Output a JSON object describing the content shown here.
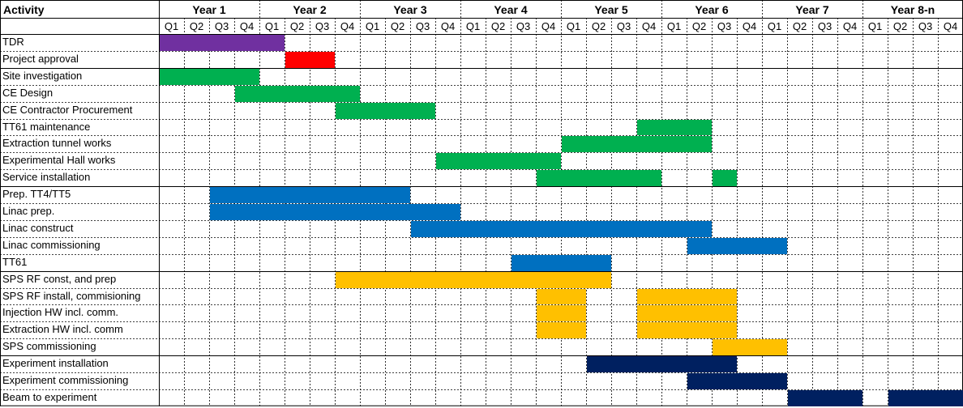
{
  "chart_data": {
    "type": "gantt",
    "activity_header": "Activity",
    "years": [
      "Year 1",
      "Year 2",
      "Year 3",
      "Year 4",
      "Year 5",
      "Year 6",
      "Year 7",
      "Year 8-n"
    ],
    "quarters": [
      "Q1",
      "Q2",
      "Q3",
      "Q4"
    ],
    "colors": {
      "purple": "#7030a0",
      "red": "#ff0000",
      "green": "#00b050",
      "blue": "#0070c0",
      "yellow": "#ffc000",
      "navy": "#002060"
    },
    "rows": [
      {
        "activity": "TDR",
        "color": "purple",
        "segments": [
          [
            0,
            5
          ]
        ]
      },
      {
        "activity": "Project approval",
        "color": "red",
        "segments": [
          [
            5,
            7
          ]
        ]
      },
      {
        "activity": "Site investigation",
        "color": "green",
        "segments": [
          [
            0,
            4
          ]
        ]
      },
      {
        "activity": "CE Design",
        "color": "green",
        "segments": [
          [
            3,
            8
          ]
        ]
      },
      {
        "activity": "CE Contractor Procurement",
        "color": "green",
        "segments": [
          [
            7,
            11
          ]
        ]
      },
      {
        "activity": "TT61 maintenance",
        "color": "green",
        "segments": [
          [
            19,
            22
          ]
        ]
      },
      {
        "activity": "Extraction tunnel works",
        "color": "green",
        "segments": [
          [
            16,
            22
          ]
        ]
      },
      {
        "activity": "Experimental Hall works",
        "color": "green",
        "segments": [
          [
            11,
            16
          ]
        ]
      },
      {
        "activity": "Service installation",
        "color": "green",
        "segments": [
          [
            15,
            20
          ],
          [
            22,
            23
          ]
        ]
      },
      {
        "activity": "Prep. TT4/TT5",
        "color": "blue",
        "segments": [
          [
            2,
            10
          ]
        ]
      },
      {
        "activity": "Linac prep.",
        "color": "blue",
        "segments": [
          [
            2,
            12
          ]
        ]
      },
      {
        "activity": "Linac construct",
        "color": "blue",
        "segments": [
          [
            10,
            22
          ]
        ]
      },
      {
        "activity": "Linac commissioning",
        "color": "blue",
        "segments": [
          [
            21,
            25
          ]
        ]
      },
      {
        "activity": "TT61",
        "color": "blue",
        "segments": [
          [
            14,
            18
          ]
        ]
      },
      {
        "activity": "SPS RF const, and prep",
        "color": "yellow",
        "segments": [
          [
            7,
            18
          ]
        ]
      },
      {
        "activity": "SPS RF install, commisioning",
        "color": "yellow",
        "segments": [
          [
            15,
            17
          ],
          [
            19,
            23
          ]
        ]
      },
      {
        "activity": "Injection HW incl. comm.",
        "color": "yellow",
        "segments": [
          [
            15,
            17
          ],
          [
            19,
            23
          ]
        ]
      },
      {
        "activity": "Extraction HW incl. comm",
        "color": "yellow",
        "segments": [
          [
            15,
            17
          ],
          [
            19,
            23
          ]
        ]
      },
      {
        "activity": "SPS commissioning",
        "color": "yellow",
        "segments": [
          [
            22,
            25
          ]
        ]
      },
      {
        "activity": "Experiment installation",
        "color": "navy",
        "segments": [
          [
            17,
            23
          ]
        ]
      },
      {
        "activity": "Experiment commissioning",
        "color": "navy",
        "segments": [
          [
            21,
            25
          ]
        ]
      },
      {
        "activity": "Beam to experiment",
        "color": "navy",
        "segments": [
          [
            25,
            28
          ],
          [
            29,
            32
          ]
        ]
      }
    ],
    "group_separators_after_row": [
      1,
      8,
      13,
      18
    ]
  }
}
